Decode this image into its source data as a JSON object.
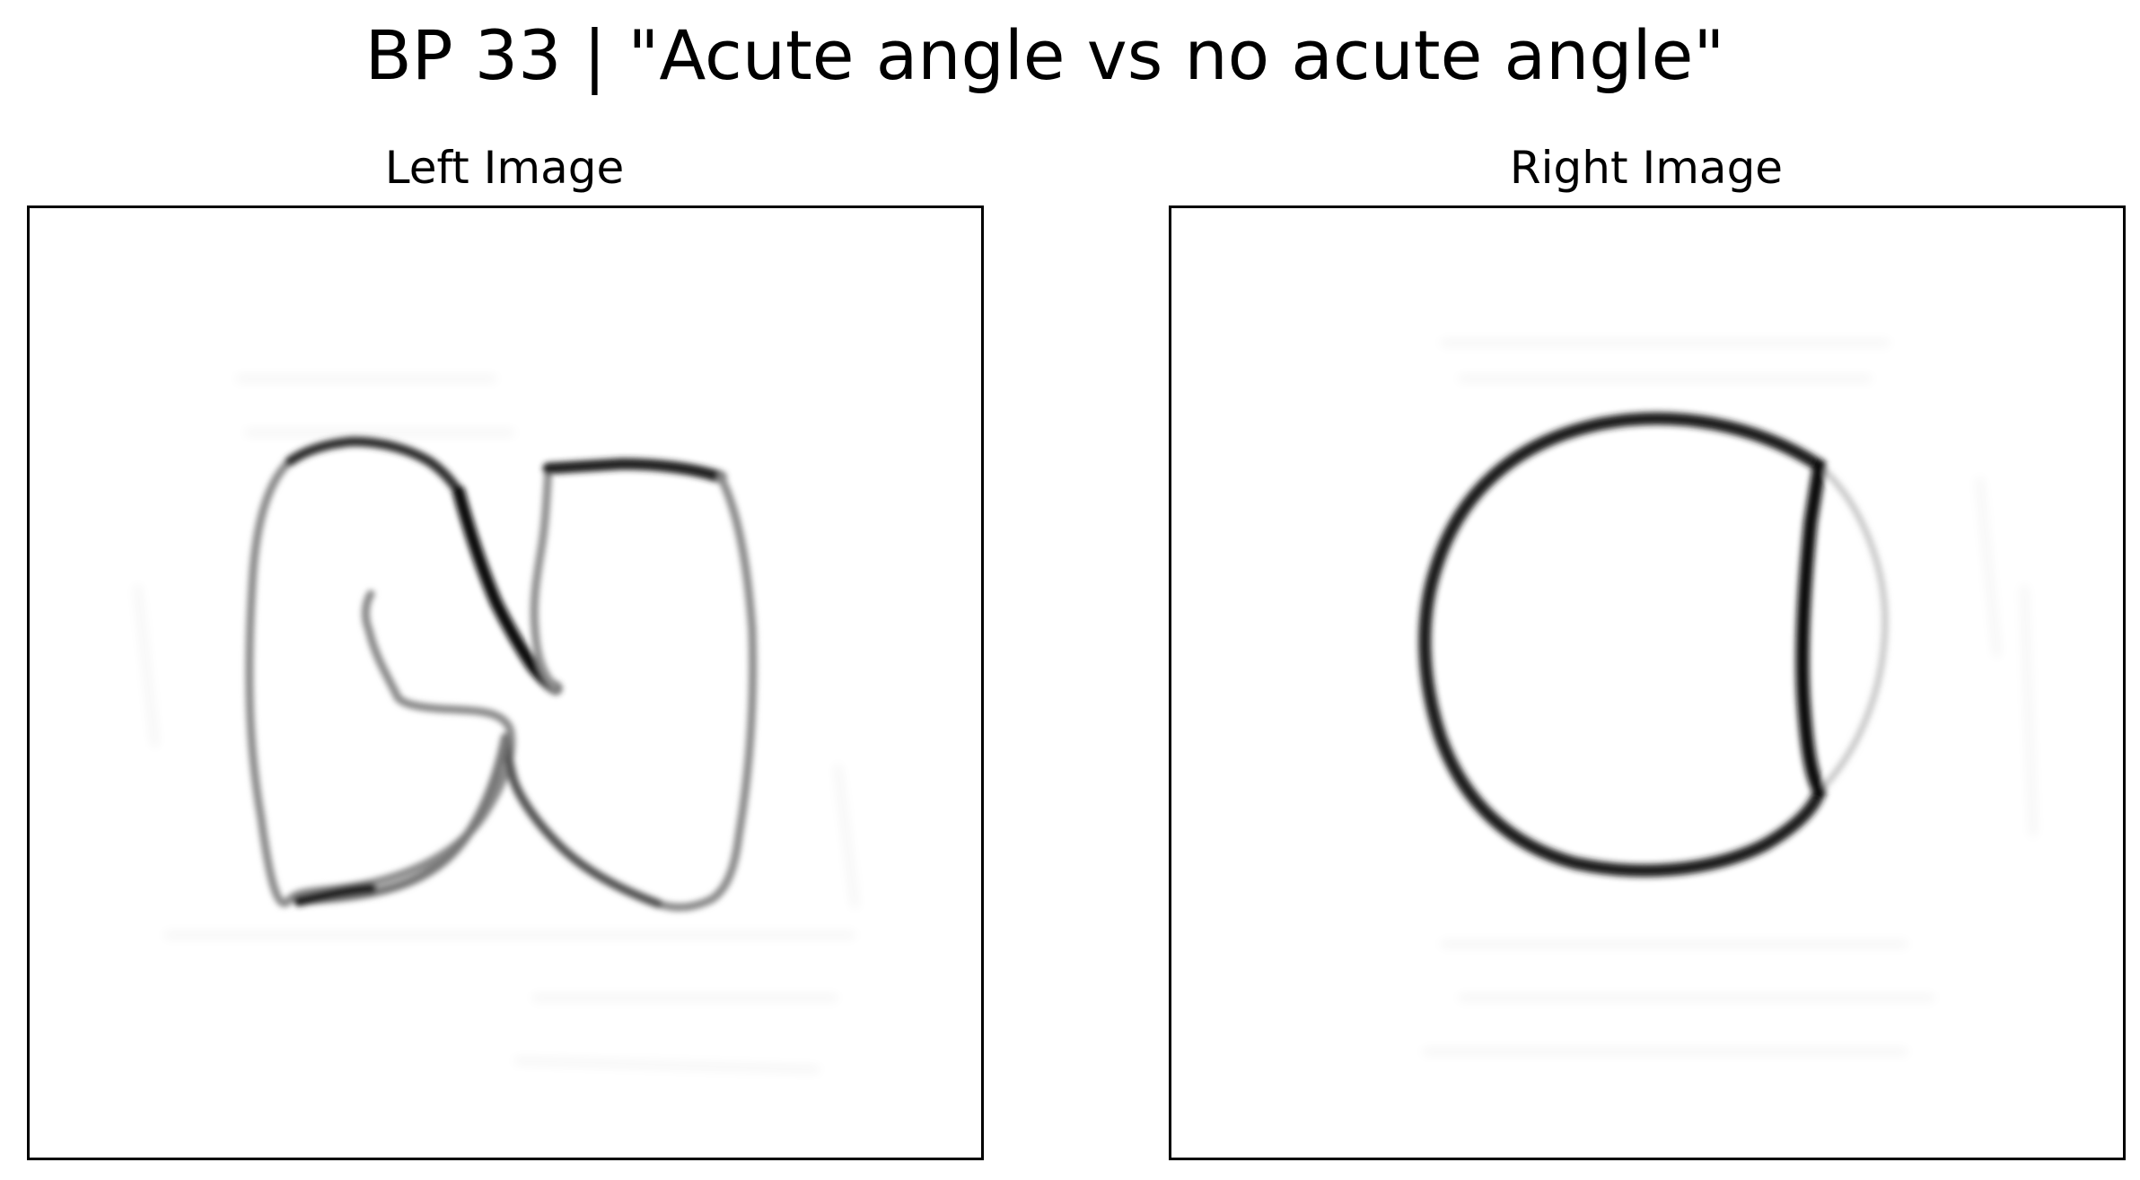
{
  "figure": {
    "title": "BP 33 | \"Acute angle vs no acute angle\""
  },
  "panels": {
    "left": {
      "title": "Left Image"
    },
    "right": {
      "title": "Right Image"
    }
  },
  "colors": {
    "background": "#ffffff",
    "frame": "#000000",
    "ink_dark": "#111111",
    "ink_mid": "#555555",
    "ink_light": "#9a9a9a"
  }
}
